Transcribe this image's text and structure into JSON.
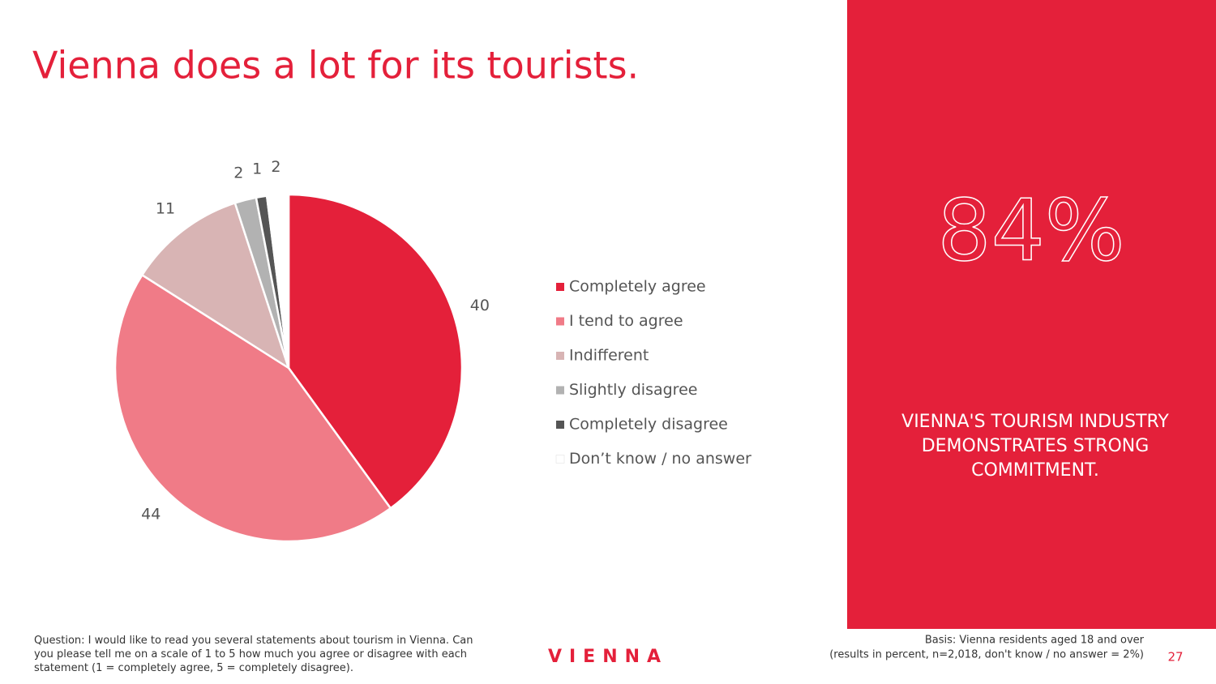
{
  "title": "Vienna does a lot for its tourists.",
  "chart_data": {
    "type": "pie",
    "categories": [
      "Completely agree",
      "I tend to agree",
      "Indifferent",
      "Slightly disagree",
      "Completely disagree",
      "Don’t know / no answer"
    ],
    "values": [
      40,
      44,
      11,
      2,
      1,
      2
    ],
    "colors": [
      "#e4203a",
      "#f07b87",
      "#d8b4b4",
      "#b2b2b2",
      "#555555",
      "#ffffff"
    ],
    "legend": "right"
  },
  "highlight": {
    "value": "84%",
    "text": "VIENNA'S TOURISM INDUSTRY DEMONSTRATES STRONG COMMITMENT."
  },
  "footer": {
    "question": "Question: I would like to read you several statements about tourism in Vienna. Can you please tell me on a scale of 1 to 5 how much you agree or disagree with each statement (1 = completely agree, 5 = completely disagree).",
    "logo": "VIENNA",
    "basis": "Basis: Vienna residents aged 18 and over",
    "basis_note": "(results in percent, n=2,018, don't know / no answer = 2%)",
    "page": "27"
  }
}
